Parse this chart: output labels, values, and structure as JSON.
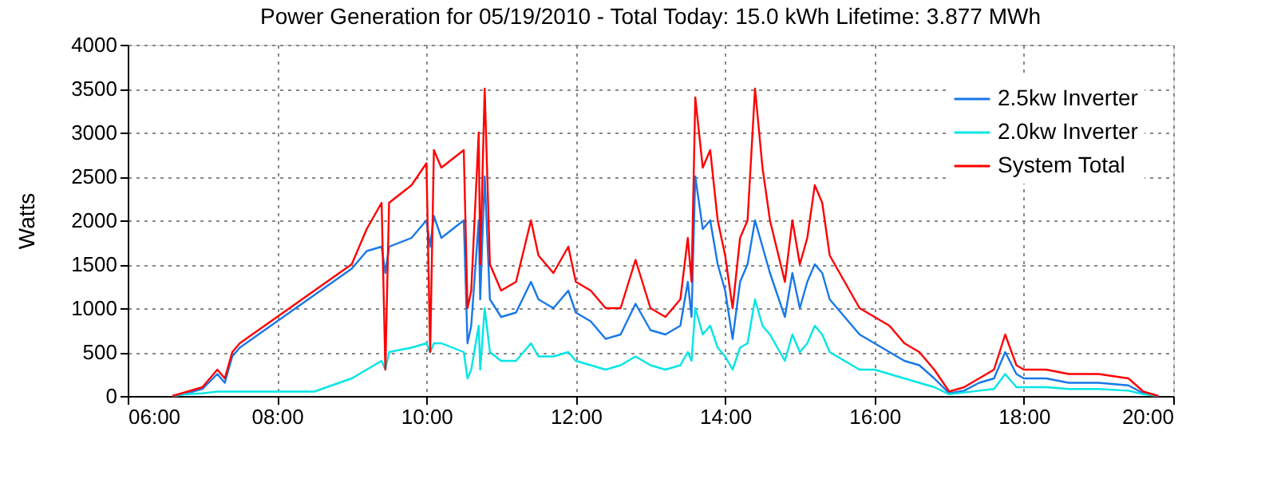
{
  "chart_data": {
    "type": "line",
    "title": "Power Generation for 05/19/2010 - Total Today: 15.0 kWh   Lifetime: 3.877 MWh",
    "ylabel": "Watts",
    "x": [
      6.6,
      6.8,
      7.0,
      7.2,
      7.3,
      7.4,
      7.5,
      8.0,
      8.5,
      9.0,
      9.2,
      9.4,
      9.45,
      9.5,
      9.8,
      10.0,
      10.05,
      10.1,
      10.2,
      10.5,
      10.55,
      10.6,
      10.7,
      10.72,
      10.78,
      10.85,
      11.0,
      11.2,
      11.4,
      11.5,
      11.7,
      11.9,
      12.0,
      12.2,
      12.4,
      12.6,
      12.8,
      13.0,
      13.2,
      13.4,
      13.5,
      13.55,
      13.6,
      13.7,
      13.8,
      13.9,
      14.0,
      14.1,
      14.2,
      14.3,
      14.4,
      14.5,
      14.6,
      14.8,
      14.9,
      15.0,
      15.1,
      15.2,
      15.3,
      15.4,
      15.6,
      15.8,
      16.0,
      16.2,
      16.4,
      16.6,
      16.8,
      17.0,
      17.2,
      17.4,
      17.6,
      17.75,
      17.9,
      18.0,
      18.3,
      18.6,
      19.0,
      19.4,
      19.6,
      19.8
    ],
    "series": [
      {
        "name": "2.5kw Inverter",
        "color": "#1878e8",
        "values": [
          0,
          30,
          80,
          250,
          150,
          450,
          550,
          850,
          1150,
          1450,
          1650,
          1700,
          1400,
          1700,
          1800,
          2000,
          1700,
          2050,
          1800,
          2000,
          600,
          800,
          2000,
          1100,
          2500,
          1100,
          900,
          950,
          1300,
          1100,
          1000,
          1200,
          950,
          850,
          650,
          700,
          1050,
          750,
          700,
          800,
          1300,
          900,
          2500,
          1900,
          2000,
          1500,
          1200,
          650,
          1300,
          1500,
          2000,
          1700,
          1400,
          900,
          1400,
          1000,
          1300,
          1500,
          1400,
          1100,
          900,
          700,
          600,
          500,
          400,
          350,
          200,
          30,
          60,
          150,
          200,
          500,
          250,
          200,
          200,
          150,
          150,
          120,
          30,
          0
        ]
      },
      {
        "name": "2.0kw Inverter",
        "color": "#00e5e5",
        "values": [
          0,
          20,
          30,
          50,
          50,
          50,
          50,
          50,
          50,
          200,
          300,
          400,
          300,
          500,
          550,
          600,
          500,
          600,
          600,
          500,
          200,
          300,
          800,
          300,
          1000,
          500,
          400,
          400,
          600,
          450,
          450,
          500,
          400,
          350,
          300,
          350,
          450,
          350,
          300,
          350,
          500,
          400,
          1000,
          700,
          800,
          550,
          450,
          300,
          550,
          600,
          1100,
          800,
          700,
          400,
          700,
          500,
          600,
          800,
          700,
          500,
          400,
          300,
          300,
          250,
          200,
          150,
          100,
          20,
          40,
          60,
          80,
          250,
          100,
          100,
          100,
          80,
          80,
          60,
          20,
          0
        ]
      },
      {
        "name": "System Total",
        "color": "#ff0000",
        "values": [
          0,
          50,
          100,
          300,
          200,
          500,
          600,
          900,
          1200,
          1500,
          1900,
          2200,
          300,
          2200,
          2400,
          2650,
          500,
          2800,
          2600,
          2800,
          1000,
          1200,
          3000,
          1500,
          3500,
          1500,
          1200,
          1300,
          2000,
          1600,
          1400,
          1700,
          1300,
          1200,
          1000,
          1000,
          1550,
          1000,
          900,
          1100,
          1800,
          1300,
          3400,
          2600,
          2800,
          2000,
          1600,
          1000,
          1800,
          2000,
          3500,
          2600,
          2000,
          1300,
          2000,
          1500,
          1800,
          2400,
          2200,
          1600,
          1300,
          1000,
          900,
          800,
          600,
          500,
          300,
          50,
          100,
          200,
          300,
          700,
          350,
          300,
          300,
          250,
          250,
          200,
          50,
          0
        ]
      }
    ],
    "xlim": [
      6,
      20
    ],
    "xticks": [
      {
        "value": 6,
        "label": "06:00"
      },
      {
        "value": 8,
        "label": "08:00"
      },
      {
        "value": 10,
        "label": "10:00"
      },
      {
        "value": 12,
        "label": "12:00"
      },
      {
        "value": 14,
        "label": "14:00"
      },
      {
        "value": 16,
        "label": "16:00"
      },
      {
        "value": 18,
        "label": "18:00"
      },
      {
        "value": 20,
        "label": "20:00"
      }
    ],
    "ylim": [
      0,
      4000
    ],
    "yticks": [
      0,
      500,
      1000,
      1500,
      2000,
      2500,
      3000,
      3500,
      4000
    ],
    "grid": true,
    "legend": "top right",
    "line_style": "solid",
    "marker": "none"
  }
}
